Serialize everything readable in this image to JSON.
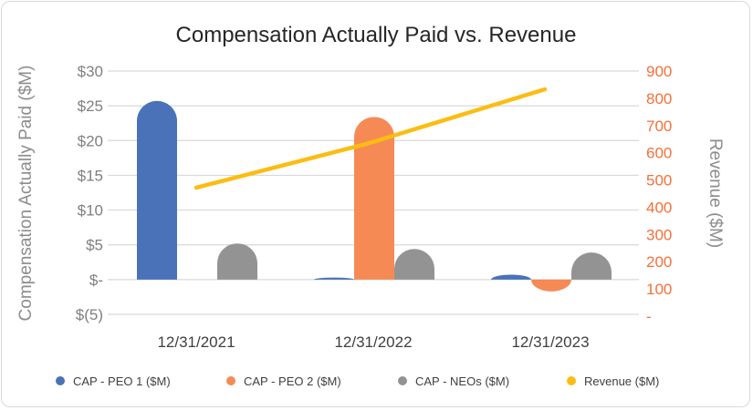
{
  "chart_data": {
    "type": "bar",
    "title": "Compensation Actually Paid vs. Revenue",
    "categories": [
      "12/31/2021",
      "12/31/2022",
      "12/31/2023"
    ],
    "ylabel": "Compensation Actually Paid ($M)",
    "y2label": "Revenue ($M)",
    "ylim": [
      -5,
      30
    ],
    "y2lim": [
      0,
      900
    ],
    "yticks": [
      "$30",
      "$25",
      "$20",
      "$15",
      "$10",
      "$5",
      "$-",
      "$(5)"
    ],
    "y2ticks": [
      "900",
      "800",
      "700",
      "600",
      "500",
      "400",
      "300",
      "200",
      "100",
      "-"
    ],
    "grid": true,
    "legend_position": "bottom",
    "series": [
      {
        "name": "CAP - PEO 1 ($M)",
        "type": "bar",
        "axis": "left",
        "color": "#4a72b8",
        "values": [
          25.7,
          0.3,
          0.7
        ]
      },
      {
        "name": "CAP - PEO 2 ($M)",
        "type": "bar",
        "axis": "left",
        "color": "#f58a55",
        "values": [
          null,
          23.4,
          -1.7
        ]
      },
      {
        "name": "CAP - NEOs ($M)",
        "type": "bar",
        "axis": "left",
        "color": "#939393",
        "values": [
          5.2,
          4.4,
          3.9
        ]
      },
      {
        "name": "Revenue ($M)",
        "type": "line",
        "axis": "right",
        "color": "#fbbd12",
        "values": [
          472,
          632,
          833
        ]
      }
    ]
  }
}
